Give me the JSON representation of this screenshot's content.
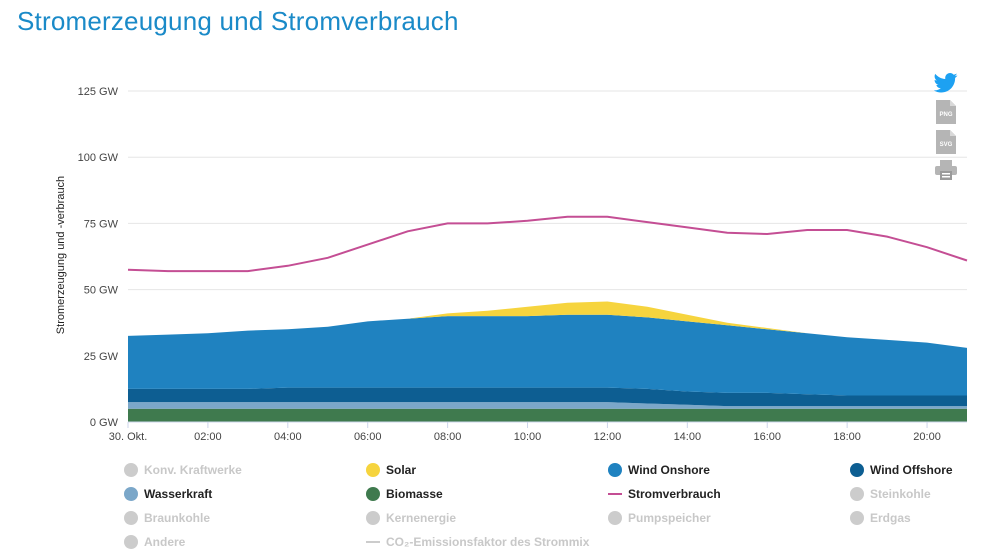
{
  "page": {
    "title": "Stromerzeugung und Stromverbrauch"
  },
  "tools": {
    "twitter_icon": "twitter-icon",
    "png_label": "PNG",
    "svg_label": "SVG",
    "print_icon": "print-icon"
  },
  "chart_data": {
    "type": "area",
    "title": "Stromerzeugung und Stromverbrauch",
    "xlabel": "",
    "ylabel": "Stromerzeugung und -verbrauch",
    "ylim": [
      0,
      125
    ],
    "xlim": [
      0,
      21
    ],
    "grid": true,
    "y_ticks": [
      {
        "value": 0,
        "label": "0 GW"
      },
      {
        "value": 25,
        "label": "25 GW"
      },
      {
        "value": 50,
        "label": "50 GW"
      },
      {
        "value": 75,
        "label": "75 GW"
      },
      {
        "value": 100,
        "label": "100 GW"
      },
      {
        "value": 125,
        "label": "125 GW"
      }
    ],
    "x_ticks": [
      {
        "value": 0,
        "label": "30. Okt."
      },
      {
        "value": 2,
        "label": "02:00"
      },
      {
        "value": 4,
        "label": "04:00"
      },
      {
        "value": 6,
        "label": "06:00"
      },
      {
        "value": 8,
        "label": "08:00"
      },
      {
        "value": 10,
        "label": "10:00"
      },
      {
        "value": 12,
        "label": "12:00"
      },
      {
        "value": 14,
        "label": "14:00"
      },
      {
        "value": 16,
        "label": "16:00"
      },
      {
        "value": 18,
        "label": "18:00"
      },
      {
        "value": 20,
        "label": "20:00"
      }
    ],
    "x": [
      0,
      1,
      2,
      3,
      4,
      5,
      6,
      7,
      8,
      9,
      10,
      11,
      12,
      13,
      14,
      15,
      16,
      17,
      18,
      19,
      20,
      21
    ],
    "stacked_series": [
      {
        "name": "Biomasse",
        "color": "#3f7a4e",
        "values": [
          5,
          5,
          5,
          5,
          5,
          5,
          5,
          5,
          5,
          5,
          5,
          5,
          5,
          5,
          5,
          5,
          5,
          5,
          5,
          5,
          5,
          5
        ]
      },
      {
        "name": "Wasserkraft",
        "color": "#7ba7c9",
        "values": [
          2.5,
          2.5,
          2.5,
          2.5,
          2.5,
          2.5,
          2.5,
          2.5,
          2.5,
          2.5,
          2.5,
          2.5,
          2.5,
          2.0,
          1.5,
          1.0,
          1.0,
          1.0,
          1.0,
          1.0,
          1.0,
          1.0
        ]
      },
      {
        "name": "Wind Offshore",
        "color": "#0d5e92",
        "values": [
          5,
          5,
          5,
          5,
          5.5,
          5.5,
          5.5,
          5.5,
          5.5,
          5.5,
          5.5,
          5.5,
          5.5,
          5.5,
          5,
          5,
          5,
          4.5,
          4,
          4,
          4,
          4
        ]
      },
      {
        "name": "Wind Onshore",
        "color": "#1f82c0",
        "values": [
          20,
          20.5,
          21,
          22,
          22,
          23,
          25,
          26,
          27,
          27,
          27,
          27.5,
          27.5,
          27,
          26.5,
          25.5,
          24,
          23,
          22,
          21,
          20,
          18
        ]
      },
      {
        "name": "Solar",
        "color": "#f6d43e",
        "values": [
          0,
          0,
          0,
          0,
          0,
          0,
          0,
          0,
          1,
          2,
          3.5,
          4.5,
          5,
          4,
          2.5,
          1,
          0.5,
          0,
          0,
          0,
          0,
          0
        ]
      }
    ],
    "line_series": [
      {
        "name": "Stromverbrauch",
        "color": "#c44e94",
        "values": [
          57.5,
          57,
          57,
          57,
          59,
          62,
          67,
          72,
          75,
          75,
          76,
          77.5,
          77.5,
          75.5,
          73.5,
          71.5,
          71,
          72.5,
          72.5,
          70,
          66,
          61
        ]
      }
    ]
  },
  "legend": {
    "items": [
      {
        "label": "Konv. Kraftwerke",
        "color": "#cccccc",
        "marker": "dot",
        "active": false
      },
      {
        "label": "Solar",
        "color": "#f6d43e",
        "marker": "dot",
        "active": true
      },
      {
        "label": "Wind Onshore",
        "color": "#1f82c0",
        "marker": "dot",
        "active": true
      },
      {
        "label": "Wind Offshore",
        "color": "#0d5e92",
        "marker": "dot",
        "active": true
      },
      {
        "label": "Wasserkraft",
        "color": "#7ba7c9",
        "marker": "dot",
        "active": true
      },
      {
        "label": "Biomasse",
        "color": "#3f7a4e",
        "marker": "dot",
        "active": true
      },
      {
        "label": "Stromverbrauch",
        "color": "#c44e94",
        "marker": "line",
        "active": true
      },
      {
        "label": "Steinkohle",
        "color": "#cccccc",
        "marker": "dot",
        "active": false
      },
      {
        "label": "Braunkohle",
        "color": "#cccccc",
        "marker": "dot",
        "active": false
      },
      {
        "label": "Kernenergie",
        "color": "#cccccc",
        "marker": "dot",
        "active": false
      },
      {
        "label": "Pumpspeicher",
        "color": "#cccccc",
        "marker": "dot",
        "active": false
      },
      {
        "label": "Erdgas",
        "color": "#cccccc",
        "marker": "dot",
        "active": false
      },
      {
        "label": "Andere",
        "color": "#cccccc",
        "marker": "dot",
        "active": false
      },
      {
        "label": "CO₂-Emissionsfaktor des Strommix",
        "color": "#cccccc",
        "marker": "line",
        "active": false
      }
    ]
  }
}
